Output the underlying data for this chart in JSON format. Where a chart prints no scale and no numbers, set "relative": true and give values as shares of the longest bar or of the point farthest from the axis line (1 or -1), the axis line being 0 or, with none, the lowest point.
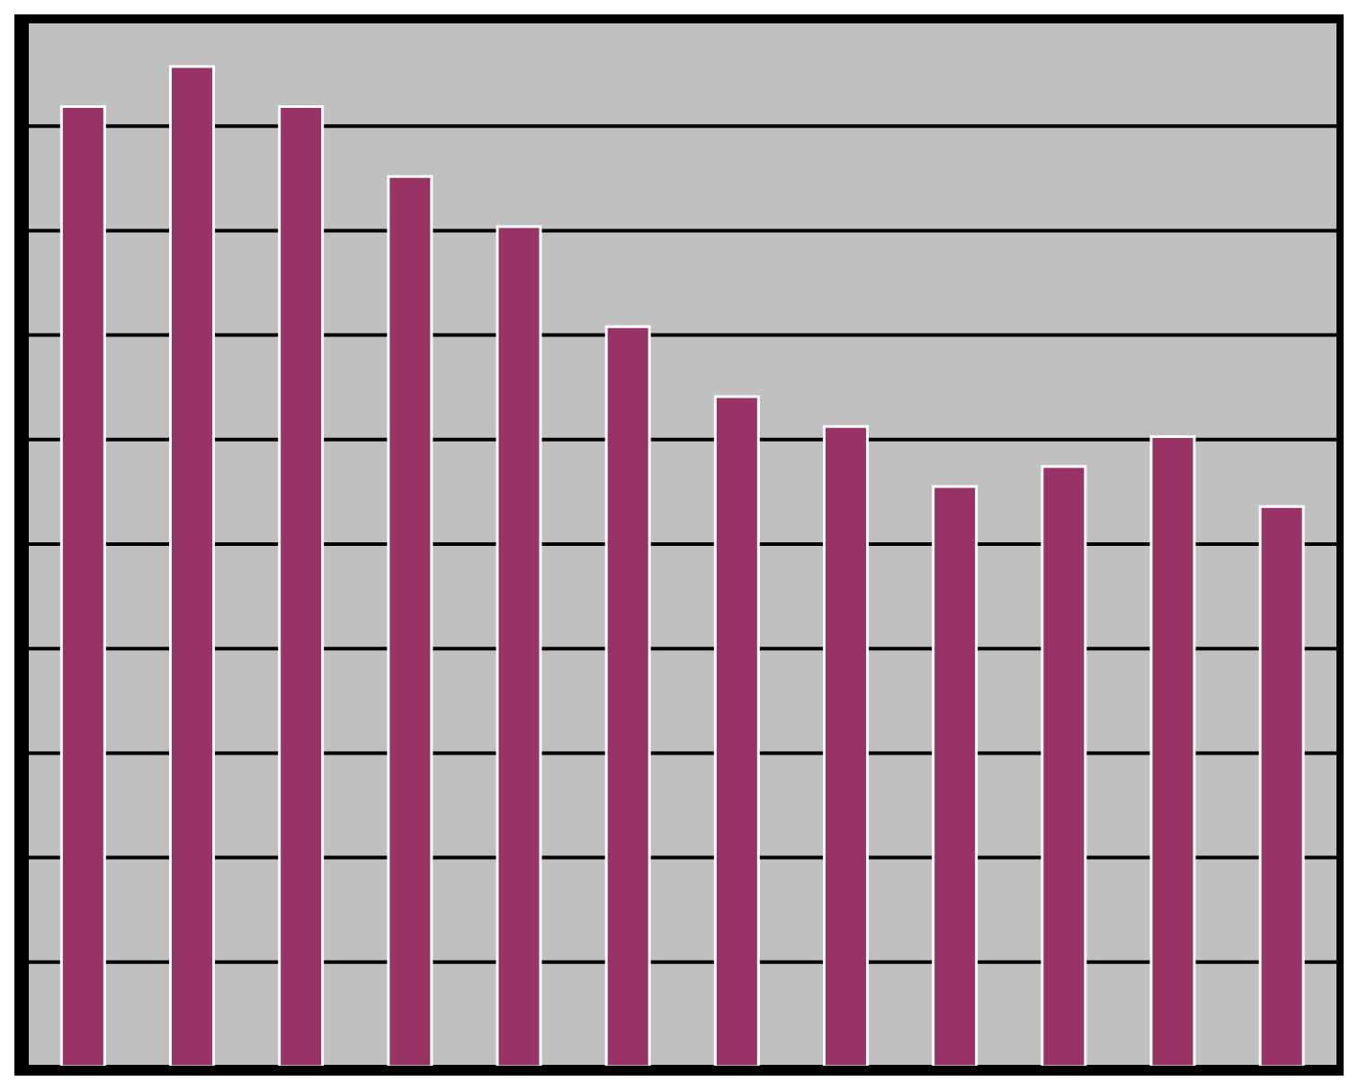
{
  "chart_data": {
    "type": "bar",
    "relative": true,
    "grid": "y",
    "categories": [
      null,
      null,
      null,
      null,
      null,
      null,
      null,
      null,
      null,
      null,
      null,
      null
    ],
    "values": [
      0.96,
      1,
      0.96,
      0.89,
      0.84,
      0.74,
      0.67,
      0.64,
      0.58,
      0.6,
      0.63,
      0.56
    ],
    "color": "#993366"
  }
}
